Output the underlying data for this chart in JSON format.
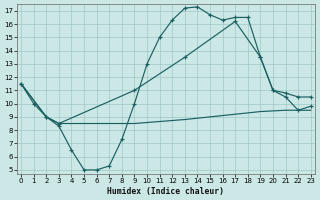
{
  "xlabel": "Humidex (Indice chaleur)",
  "bg_color": "#cce8e6",
  "grid_color": "#a0c8c4",
  "line_color": "#1a6060",
  "xlim": [
    -0.3,
    23.3
  ],
  "ylim": [
    4.7,
    17.5
  ],
  "xticks": [
    0,
    1,
    2,
    3,
    4,
    5,
    6,
    7,
    8,
    9,
    10,
    11,
    12,
    13,
    14,
    15,
    16,
    17,
    18,
    19,
    20,
    21,
    22,
    23
  ],
  "yticks": [
    5,
    6,
    7,
    8,
    9,
    10,
    11,
    12,
    13,
    14,
    15,
    16,
    17
  ],
  "line1_x": [
    0,
    1,
    2,
    3,
    4,
    5,
    6,
    7,
    8,
    9,
    10,
    11,
    12,
    13,
    14,
    15,
    16,
    17,
    18,
    19,
    20,
    21,
    22,
    23
  ],
  "line1_y": [
    11.5,
    10.0,
    9.0,
    8.3,
    6.5,
    5.0,
    5.0,
    5.3,
    7.3,
    10.0,
    13.0,
    15.0,
    16.3,
    17.2,
    17.3,
    16.7,
    16.3,
    16.5,
    16.5,
    13.5,
    11.0,
    10.5,
    9.5,
    9.8
  ],
  "line2_x": [
    0,
    2,
    3,
    9,
    13,
    17,
    19,
    20,
    21,
    22,
    23
  ],
  "line2_y": [
    11.5,
    9.0,
    8.5,
    11.0,
    13.5,
    16.2,
    13.5,
    11.0,
    10.8,
    10.5,
    10.5
  ],
  "line3_x": [
    0,
    2,
    3,
    9,
    13,
    17,
    19,
    21,
    23
  ],
  "line3_y": [
    11.5,
    9.0,
    8.5,
    8.5,
    8.8,
    9.2,
    9.4,
    9.5,
    9.5
  ]
}
